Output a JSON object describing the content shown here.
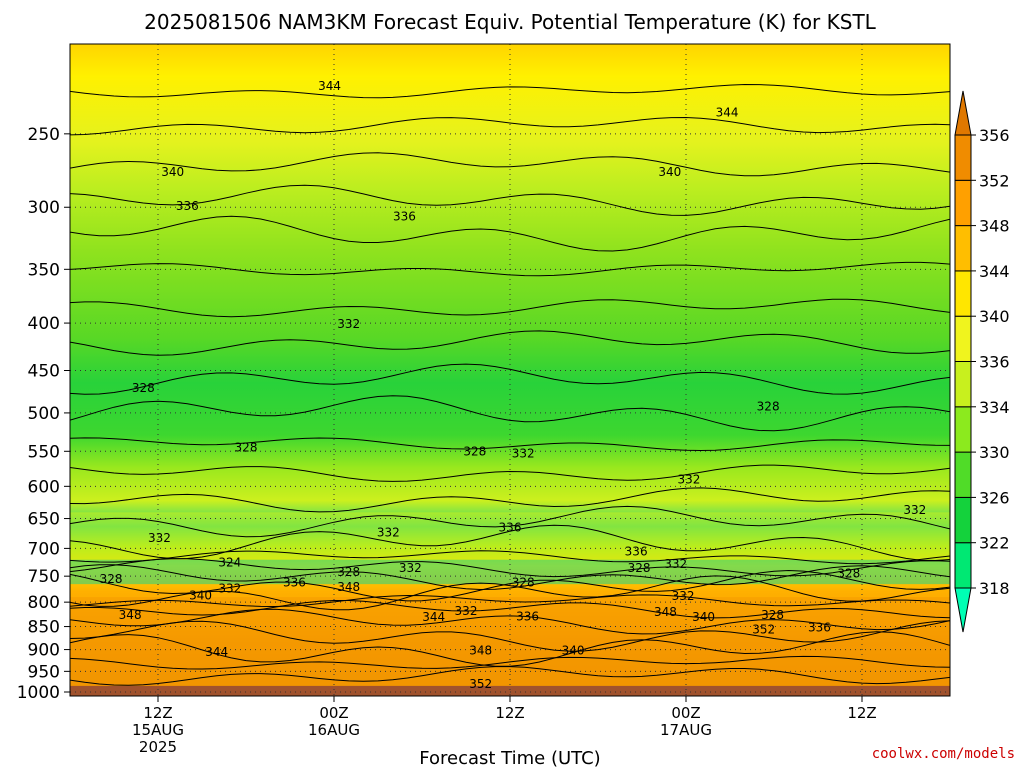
{
  "chart_data": {
    "type": "heatmap",
    "title": "2025081506 NAM3KM Forecast Equiv. Potential Temperature (K) for KSTL",
    "xlabel": "Forecast Time (UTC)",
    "ylabel": "",
    "y_scale": "log",
    "y_reversed": true,
    "y_ticks": [
      250,
      300,
      350,
      400,
      450,
      500,
      550,
      600,
      650,
      700,
      750,
      800,
      850,
      900,
      950,
      1000
    ],
    "x_ticks": [
      {
        "line1": "12Z",
        "line2": "15AUG",
        "line3": "2025",
        "hour": 6
      },
      {
        "line1": "00Z",
        "line2": "16AUG",
        "line3": "",
        "hour": 18
      },
      {
        "line1": "12Z",
        "line2": "",
        "line3": "",
        "hour": 30
      },
      {
        "line1": "00Z",
        "line2": "17AUG",
        "line3": "",
        "hour": 42
      },
      {
        "line1": "12Z",
        "line2": "",
        "line3": "",
        "hour": 54
      }
    ],
    "x_range_hours": [
      0,
      60
    ],
    "y_range": [
      200,
      1010
    ],
    "colorbar": {
      "levels": [
        318,
        322,
        326,
        330,
        334,
        336,
        340,
        344,
        348,
        352,
        356
      ],
      "colors": [
        "#00ffb4",
        "#00e873",
        "#14d23c",
        "#50dc28",
        "#8cea1e",
        "#c8f01e",
        "#f0f41e",
        "#ffe600",
        "#ffbe00",
        "#ffa000",
        "#f08c00",
        "#e07800"
      ]
    },
    "series": [
      {
        "name": "",
        "values": [
          {
            "p": 230,
            "theta": 345
          },
          {
            "p": 300,
            "theta": 338
          },
          {
            "p": 400,
            "theta": 333
          },
          {
            "p": 500,
            "theta": 329
          },
          {
            "p": 600,
            "theta": 330
          },
          {
            "p": 700,
            "theta": 334
          },
          {
            "p": 750,
            "theta": 326
          },
          {
            "p": 800,
            "theta": 340
          },
          {
            "p": 900,
            "theta": 349
          },
          {
            "p": 950,
            "theta": 351
          }
        ]
      }
    ],
    "contour_labels": [
      {
        "text": "344",
        "hour": 17.7,
        "p": 222
      },
      {
        "text": "344",
        "hour": 44.8,
        "p": 237
      },
      {
        "text": "340",
        "hour": 7.0,
        "p": 275
      },
      {
        "text": "340",
        "hour": 40.9,
        "p": 275
      },
      {
        "text": "336",
        "hour": 8.0,
        "p": 299
      },
      {
        "text": "336",
        "hour": 22.8,
        "p": 307
      },
      {
        "text": "332",
        "hour": 19.0,
        "p": 401
      },
      {
        "text": "328",
        "hour": 5.0,
        "p": 470
      },
      {
        "text": "328",
        "hour": 47.6,
        "p": 492
      },
      {
        "text": "328",
        "hour": 12.0,
        "p": 545
      },
      {
        "text": "328",
        "hour": 27.6,
        "p": 550
      },
      {
        "text": "332",
        "hour": 30.9,
        "p": 553
      },
      {
        "text": "332",
        "hour": 42.2,
        "p": 590
      },
      {
        "text": "332",
        "hour": 57.6,
        "p": 636
      },
      {
        "text": "336",
        "hour": 30.0,
        "p": 665
      },
      {
        "text": "332",
        "hour": 6.1,
        "p": 682
      },
      {
        "text": "332",
        "hour": 21.7,
        "p": 673
      },
      {
        "text": "336",
        "hour": 38.6,
        "p": 705
      },
      {
        "text": "324",
        "hour": 10.9,
        "p": 725
      },
      {
        "text": "332",
        "hour": 23.2,
        "p": 735
      },
      {
        "text": "328",
        "hour": 19.0,
        "p": 742
      },
      {
        "text": "328",
        "hour": 38.8,
        "p": 735
      },
      {
        "text": "332",
        "hour": 41.3,
        "p": 728
      },
      {
        "text": "328",
        "hour": 53.1,
        "p": 745
      },
      {
        "text": "328",
        "hour": 2.8,
        "p": 755
      },
      {
        "text": "332",
        "hour": 10.9,
        "p": 773
      },
      {
        "text": "336",
        "hour": 15.3,
        "p": 762
      },
      {
        "text": "348",
        "hour": 19.0,
        "p": 770
      },
      {
        "text": "328",
        "hour": 30.9,
        "p": 762
      },
      {
        "text": "340",
        "hour": 8.9,
        "p": 787
      },
      {
        "text": "332",
        "hour": 41.8,
        "p": 788
      },
      {
        "text": "348",
        "hour": 4.1,
        "p": 826
      },
      {
        "text": "332",
        "hour": 27.0,
        "p": 818
      },
      {
        "text": "344",
        "hour": 24.8,
        "p": 830
      },
      {
        "text": "336",
        "hour": 31.2,
        "p": 829
      },
      {
        "text": "348",
        "hour": 40.6,
        "p": 820
      },
      {
        "text": "340",
        "hour": 43.2,
        "p": 830
      },
      {
        "text": "328",
        "hour": 47.9,
        "p": 826
      },
      {
        "text": "352",
        "hour": 47.3,
        "p": 856
      },
      {
        "text": "336",
        "hour": 51.1,
        "p": 852
      },
      {
        "text": "348",
        "hour": 28.0,
        "p": 902
      },
      {
        "text": "340",
        "hour": 34.3,
        "p": 902
      },
      {
        "text": "344",
        "hour": 10.0,
        "p": 906
      },
      {
        "text": "352",
        "hour": 28.0,
        "p": 980
      }
    ],
    "grid": true,
    "legend": "colorbar-right",
    "ground_color": "#a0522d",
    "ground_p": 985
  },
  "credit": "coolwx.com/models",
  "credit_color": "#cc0000"
}
